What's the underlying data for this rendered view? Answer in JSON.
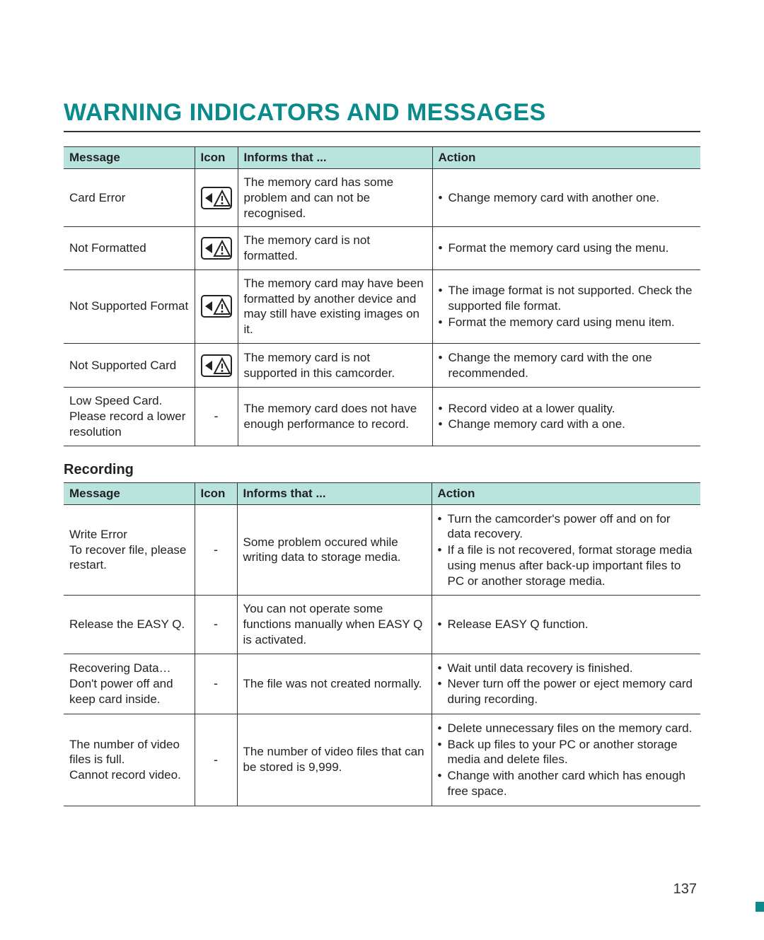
{
  "title": "WARNING INDICATORS AND MESSAGES",
  "title_color": "#0a8a8a",
  "header_bg": "#b9e4de",
  "rule_color": "#333333",
  "columns": {
    "message": "Message",
    "icon": "Icon",
    "informs": "Informs that ...",
    "action": "Action"
  },
  "section2_heading": "Recording",
  "page_number": "137",
  "table1": {
    "rows": [
      {
        "message": "Card Error",
        "icon": "card-warning",
        "informs": "The memory card has some problem and can not be recognised.",
        "actions": [
          "Change memory card with another one."
        ]
      },
      {
        "message": "Not Formatted",
        "icon": "card-warning",
        "informs": "The memory card is not formatted.",
        "actions": [
          "Format the memory card using the menu."
        ]
      },
      {
        "message": "Not Supported Format",
        "icon": "card-warning",
        "informs": "The memory card may have been formatted by another device and may still have existing images on it.",
        "actions": [
          "The image format is not supported. Check the supported file format.",
          "Format the memory card using menu item."
        ]
      },
      {
        "message": "Not Supported Card",
        "icon": "card-warning",
        "informs": "The memory card is not supported in this camcorder.",
        "actions": [
          "Change the memory card with the one recommended."
        ]
      },
      {
        "message": "Low Speed Card. Please record a lower resolution",
        "icon": "-",
        "informs": "The memory card does not have enough performance to record.",
        "actions": [
          "Record video at a lower quality.",
          "Change memory card with a one."
        ]
      }
    ]
  },
  "table2": {
    "rows": [
      {
        "message": "Write Error\nTo recover file, please restart.",
        "icon": "-",
        "informs": "Some problem occured while writing data to storage media.",
        "actions": [
          "Turn the camcorder's power off and on for data recovery.",
          "If a file is not recovered, format storage media using menus after back-up important files to PC or another storage media."
        ]
      },
      {
        "message": "Release the EASY Q.",
        "icon": "-",
        "informs": "You can not operate some functions manually when EASY Q is activated.",
        "actions": [
          "Release EASY Q function."
        ]
      },
      {
        "message": "Recovering Data…\nDon't power off and keep card inside.",
        "icon": "-",
        "informs": "The file was not created normally.",
        "actions": [
          "Wait until data recovery is finished.",
          "Never turn off the power or eject memory card during recording."
        ]
      },
      {
        "message": "The number of video files is full.\nCannot record video.",
        "icon": "-",
        "informs": "The number of video files that can be stored is 9,999.",
        "actions": [
          "Delete unnecessary files on the memory card.",
          "Back up files to your PC or another storage media and delete files.",
          "Change with another card which has enough free space."
        ]
      }
    ]
  }
}
